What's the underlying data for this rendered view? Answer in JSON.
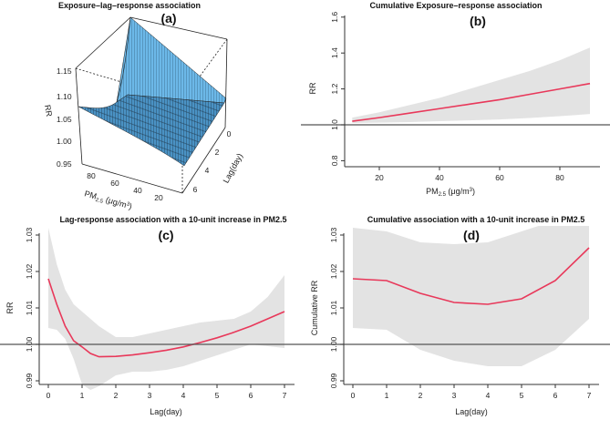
{
  "colors": {
    "line": "#e8385a",
    "ci": "#e3e3e3",
    "surface_light": "#6cb8e8",
    "surface_dark": "#3d86b8",
    "ref": "#555555"
  },
  "chart_data": [
    {
      "panel": "(a)",
      "type": "surface3d",
      "title": "Exposure–lag–response association",
      "zlabel": "RR",
      "zticks": [
        "1.15",
        "1.10",
        "1.05",
        "1.00",
        "0.95"
      ],
      "xlabel": {
        "main": "PM",
        "sub": "2.5",
        "unit": " (μg/m",
        "sup": "3",
        "close": ")"
      },
      "xticks": [
        "80",
        "60",
        "40",
        "20"
      ],
      "ylabel": "Lag(day)",
      "yticks": [
        "0",
        "2",
        "4",
        "6"
      ]
    },
    {
      "panel": "(b)",
      "type": "line",
      "title": "Cumulative Exposure–response association",
      "ylabel": "RR",
      "xlabel": {
        "main": "PM",
        "sub": "2.5",
        "unit": " (μg/m",
        "sup": "3",
        "close": ")"
      },
      "xticks": [
        20,
        40,
        60,
        80
      ],
      "yticks": [
        0.8,
        1.0,
        1.2,
        1.4,
        1.6
      ],
      "ytick_labels": [
        "0.8",
        "1.0",
        "1.2",
        "1.4",
        "1.6"
      ],
      "xtick_labels": [
        "20",
        "40",
        "60",
        "80"
      ],
      "reference": 1.0,
      "x": [
        11,
        20,
        30,
        40,
        50,
        60,
        70,
        80,
        90
      ],
      "y": [
        1.02,
        1.04,
        1.065,
        1.09,
        1.115,
        1.14,
        1.17,
        1.2,
        1.23
      ],
      "lower": [
        1.01,
        1.012,
        1.015,
        1.02,
        1.025,
        1.03,
        1.038,
        1.048,
        1.06
      ],
      "upper": [
        1.04,
        1.07,
        1.11,
        1.15,
        1.2,
        1.25,
        1.3,
        1.36,
        1.43
      ]
    },
    {
      "panel": "(c)",
      "type": "line",
      "title": "Lag-response association with a 10-unit increase in PM2.5",
      "ylabel": "RR",
      "xlabel": "Lag(day)",
      "xticks": [
        0,
        1,
        2,
        3,
        4,
        5,
        6,
        7
      ],
      "xtick_labels": [
        "0",
        "1",
        "2",
        "3",
        "4",
        "5",
        "6",
        "7"
      ],
      "yticks": [
        0.99,
        1.0,
        1.01,
        1.02,
        1.03
      ],
      "ytick_labels": [
        "0.99",
        "1.00",
        "1.01",
        "1.02",
        "1.03"
      ],
      "reference": 1.0,
      "x": [
        0,
        0.25,
        0.5,
        0.75,
        1,
        1.25,
        1.5,
        2,
        2.5,
        3,
        3.5,
        4,
        4.5,
        5,
        5.5,
        6,
        6.5,
        7
      ],
      "y": [
        1.018,
        1.011,
        1.005,
        1.001,
        0.9993,
        0.9975,
        0.9966,
        0.9967,
        0.9971,
        0.9977,
        0.9984,
        0.9993,
        1.0005,
        1.0018,
        1.0033,
        1.005,
        1.007,
        1.009
      ],
      "lower": [
        1.0045,
        1.004,
        1.0015,
        0.996,
        0.989,
        0.9875,
        0.9885,
        0.9915,
        0.9925,
        0.9925,
        0.993,
        0.994,
        0.9955,
        0.997,
        0.9985,
        1.0,
        0.9995,
        0.999
      ],
      "upper": [
        1.032,
        1.022,
        1.015,
        1.011,
        1.009,
        1.007,
        1.005,
        1.002,
        1.002,
        1.003,
        1.004,
        1.005,
        1.006,
        1.0065,
        1.007,
        1.009,
        1.013,
        1.019
      ]
    },
    {
      "panel": "(d)",
      "type": "line",
      "title": "Cumulative association with a 10-unit increase in PM2.5",
      "ylabel": "Cumulative RR",
      "xlabel": "Lag(day)",
      "xticks": [
        0,
        1,
        2,
        3,
        4,
        5,
        6,
        7
      ],
      "xtick_labels": [
        "0",
        "1",
        "2",
        "3",
        "4",
        "5",
        "6",
        "7"
      ],
      "yticks": [
        0.99,
        1.0,
        1.01,
        1.02,
        1.03
      ],
      "ytick_labels": [
        "0.99",
        "1.00",
        "1.01",
        "1.02",
        "1.03"
      ],
      "reference": 1.0,
      "x": [
        0,
        1,
        2,
        3,
        4,
        5,
        6,
        7
      ],
      "y": [
        1.018,
        1.0175,
        1.014,
        1.0115,
        1.011,
        1.0125,
        1.0175,
        1.0265
      ],
      "lower": [
        1.0045,
        1.004,
        0.9985,
        0.9955,
        0.994,
        0.994,
        0.9985,
        1.007
      ],
      "upper": [
        1.032,
        1.031,
        1.028,
        1.0275,
        1.028,
        1.031,
        1.034,
        1.036
      ]
    }
  ]
}
